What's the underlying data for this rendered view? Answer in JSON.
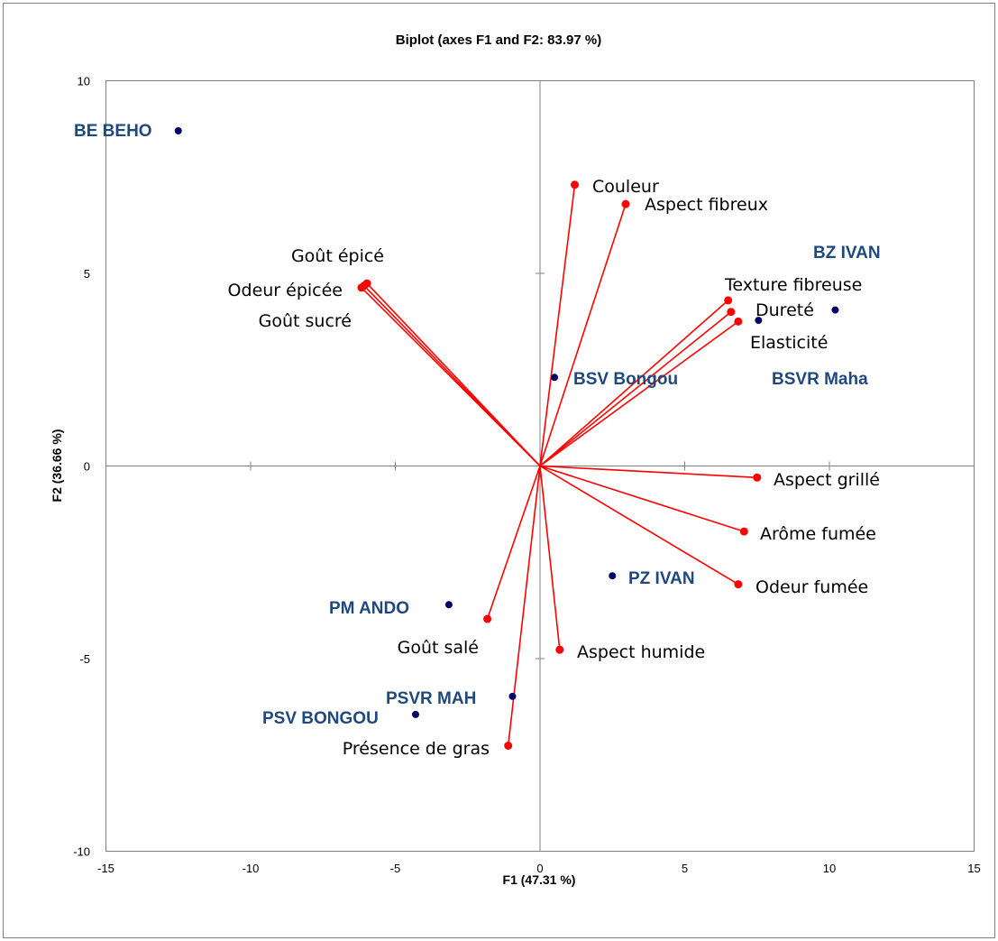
{
  "chart_data": {
    "type": "scatter",
    "title": "Biplot (axes F1 and F2: 83.97 %)",
    "xlabel": "F1 (47.31 %)",
    "ylabel": "F2 (36.66 %)",
    "xlim": [
      -15,
      15
    ],
    "ylim": [
      -10,
      10
    ],
    "xticks": [
      "-15",
      "-10",
      "-5",
      "0",
      "5",
      "10",
      "15"
    ],
    "yticks": [
      "-10",
      "-5",
      "0",
      "5",
      "10"
    ],
    "xtick_values": [
      -15,
      -10,
      -5,
      0,
      5,
      10,
      15
    ],
    "ytick_values": [
      -10,
      -5,
      0,
      5,
      10
    ],
    "grid": false,
    "colors": {
      "variables": "#ff0000",
      "observations": "#000066",
      "observation_labels": "#1f497d",
      "axis": "#808080",
      "border": "#808080"
    },
    "variables": [
      {
        "name": "Couleur",
        "x": 1.2,
        "y": 7.3
      },
      {
        "name": "Aspect fibreux",
        "x": 2.96,
        "y": 6.8
      },
      {
        "name": "Goût épicé",
        "x": -5.98,
        "y": 4.74
      },
      {
        "name": "Odeur épicée",
        "x": -6.17,
        "y": 4.63
      },
      {
        "name": "Goût sucré",
        "x": -6.08,
        "y": 4.68
      },
      {
        "name": "Texture fibreuse",
        "x": 6.5,
        "y": 4.3
      },
      {
        "name": "Dureté",
        "x": 6.6,
        "y": 4.0
      },
      {
        "name": "Elasticité",
        "x": 6.85,
        "y": 3.75
      },
      {
        "name": "Aspect grillé",
        "x": 7.5,
        "y": -0.3
      },
      {
        "name": "Arôme fumée",
        "x": 7.05,
        "y": -1.7
      },
      {
        "name": "Odeur fumée",
        "x": 6.85,
        "y": -3.07
      },
      {
        "name": "Goût salé",
        "x": -1.82,
        "y": -3.97
      },
      {
        "name": "Aspect humide",
        "x": 0.68,
        "y": -4.77
      },
      {
        "name": "Présence de gras",
        "x": -1.1,
        "y": -7.26
      }
    ],
    "observations": [
      {
        "name": "BE BEHO",
        "x": -12.5,
        "y": 8.7
      },
      {
        "name": "BZ IVAN",
        "x": 10.2,
        "y": 4.05
      },
      {
        "name": "BSVR Maha",
        "x": 7.55,
        "y": 3.78
      },
      {
        "name": "BSV Bongou",
        "x": 0.5,
        "y": 2.3
      },
      {
        "name": "PZ IVAN",
        "x": 2.5,
        "y": -2.85
      },
      {
        "name": "PM ANDO",
        "x": -3.15,
        "y": -3.6
      },
      {
        "name": "PSVR MAH",
        "x": -0.95,
        "y": -5.98
      },
      {
        "name": "PSV BONGOU",
        "x": -4.3,
        "y": -6.45
      }
    ]
  }
}
